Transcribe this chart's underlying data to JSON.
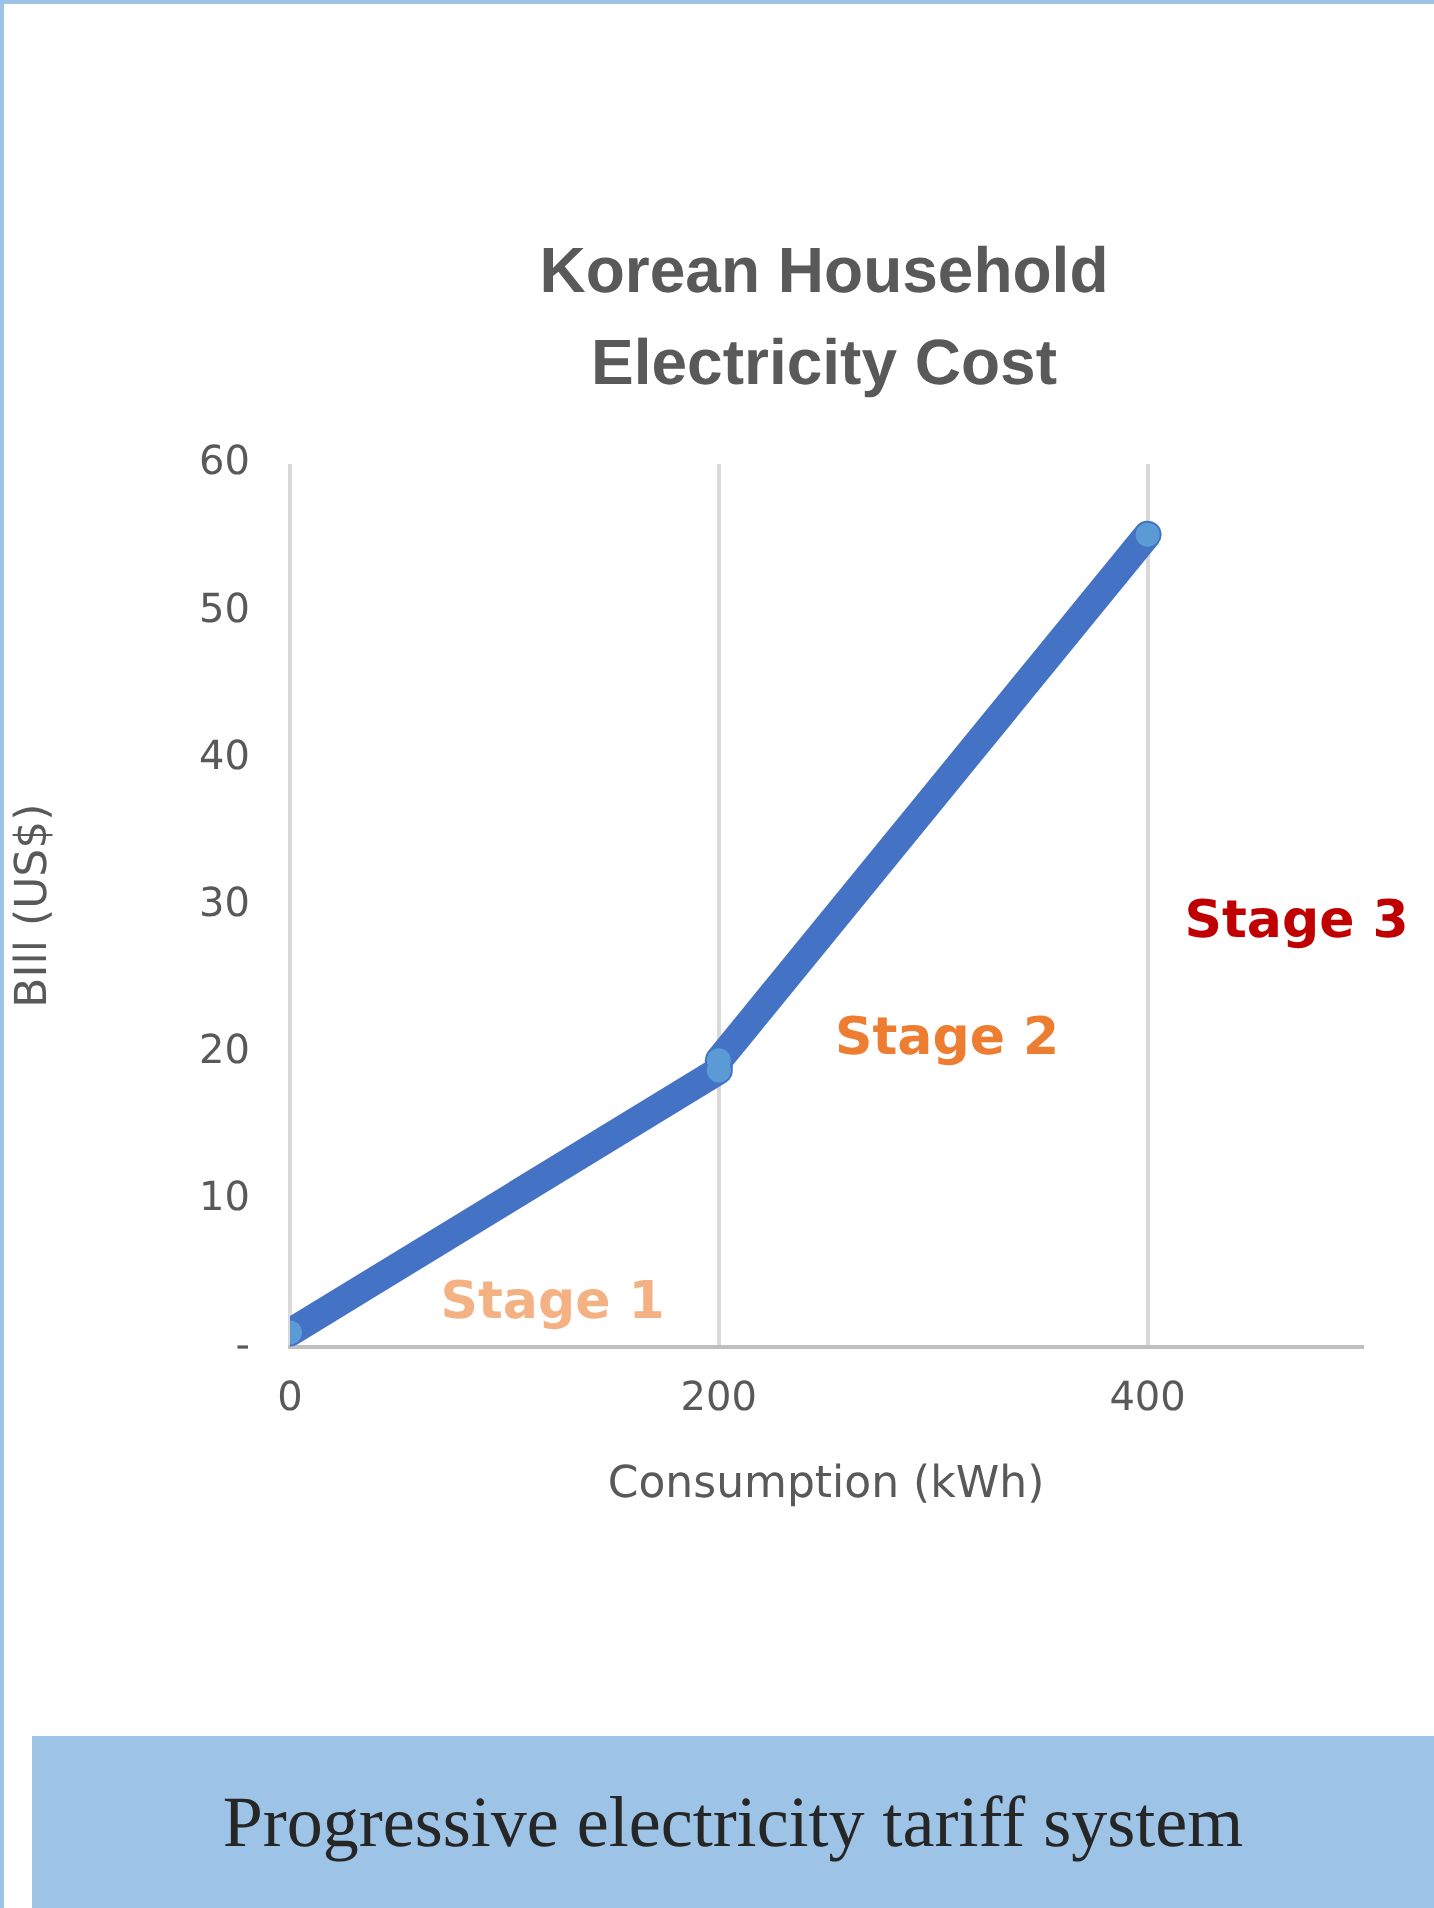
{
  "chart_data": {
    "type": "line",
    "title": "Korean Household Electricity Cost",
    "xlabel": "Consumption (kWh)",
    "ylabel": "BIll (US$)",
    "series": [
      {
        "color": "#4472c4",
        "x": [
          0,
          200,
          200,
          400
        ],
        "values": [
          1,
          18.8,
          19.5,
          55.2
        ]
      }
    ],
    "xlim": [
      0,
      500
    ],
    "xticks": [
      0,
      200,
      400
    ],
    "ylim": [
      0,
      60
    ],
    "yticks": [
      {
        "value": 0,
        "label": "-"
      },
      10,
      20,
      30,
      40,
      50,
      60
    ],
    "grid": "x",
    "legend": false,
    "marker": "circle",
    "line_style": "solid",
    "annotations": [
      "Stage 1",
      "Stage 2",
      "Stage 3",
      "Progressive electricity tariff system"
    ]
  }
}
